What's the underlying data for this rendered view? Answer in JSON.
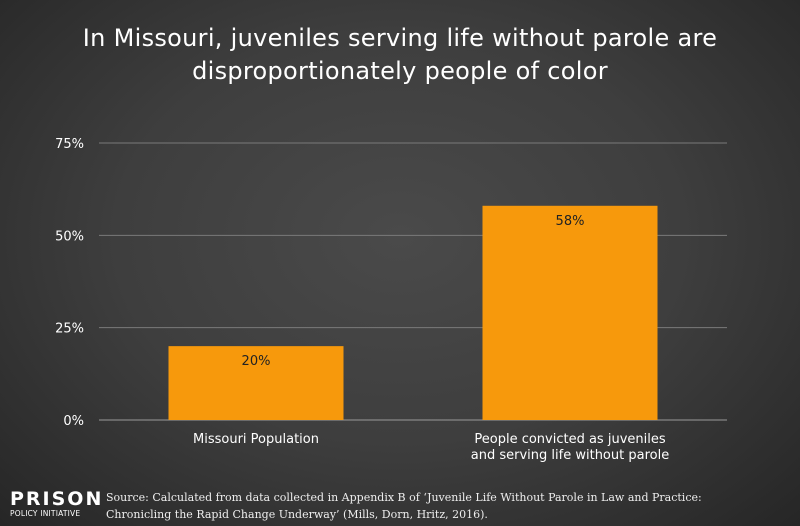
{
  "chart_data": {
    "type": "bar",
    "title": "In Missouri, juveniles serving life without parole are disproportionately people of color",
    "categories": [
      "Missouri Population",
      "People convicted as juveniles and serving life without parole"
    ],
    "category_lines": [
      [
        "Missouri Population"
      ],
      [
        "People convicted as juveniles",
        "and serving life without parole"
      ]
    ],
    "values": [
      20,
      58
    ],
    "data_labels": [
      "20%",
      "58%"
    ],
    "ylim": [
      0,
      75
    ],
    "yticks": [
      0,
      25,
      50,
      75
    ],
    "ytick_labels": [
      "0%",
      "25%",
      "50%",
      "75%"
    ],
    "xlabel": "",
    "ylabel": "",
    "grid": true,
    "bar_color": "#f7990c"
  },
  "logo": {
    "line1": "PRISON",
    "line2": "POLICY INITIATIVE"
  },
  "source": {
    "line1": "Source: Calculated from data collected in Appendix B of ‘Juvenile Life Without Parole in Law and Practice:",
    "line2": "Chronicling the Rapid Change Underway’ (Mills, Dorn, Hritz, 2016)."
  }
}
